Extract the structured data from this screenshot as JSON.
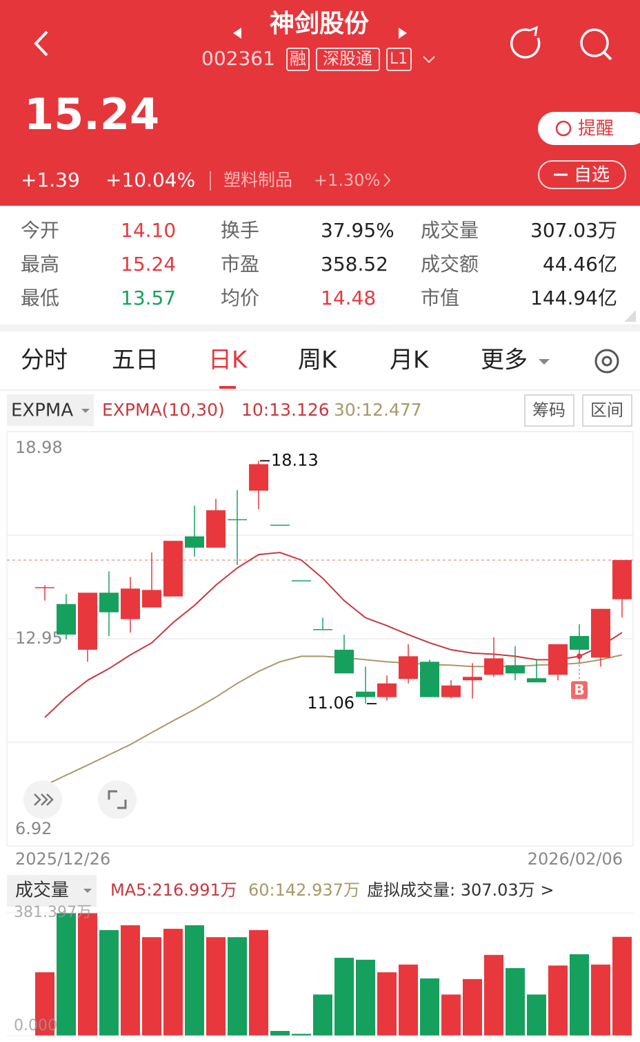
{
  "header": {
    "title": "神剑股份",
    "code": "002361",
    "tags": [
      "融",
      "深股通",
      "L1"
    ],
    "price": "15.24",
    "change": "+1.39",
    "change_pct": "+10.04%",
    "sector": "塑料制品",
    "sector_change": "+1.30%",
    "alert_button": "提醒",
    "watch_button": "自选"
  },
  "stats": [
    [
      [
        "今开",
        "14.10"
      ],
      [
        "换手",
        "37.95%"
      ],
      [
        "成交量",
        "307.03万"
      ]
    ],
    [
      [
        "最高",
        "15.24"
      ],
      [
        "市盈",
        "358.52"
      ],
      [
        "成交额",
        "44.46亿"
      ]
    ],
    [
      [
        "最低",
        "13.57"
      ],
      [
        "均价",
        "14.48"
      ],
      [
        "市值",
        "144.94亿"
      ]
    ]
  ],
  "tabs": [
    "分时",
    "五日",
    "日K",
    "周K",
    "月K",
    "更多"
  ],
  "indicator": {
    "selector": "EXPMA",
    "name": "EXPMA(10,30)",
    "ma10": "10:13.126",
    "ma30": "30:12.477",
    "buttons": [
      "筹码",
      "区间"
    ]
  },
  "chart_data": {
    "type": "candlestick",
    "ylim": [
      6.92,
      18.98
    ],
    "yticks": [
      18.98,
      12.95,
      6.92
    ],
    "open": [
      14.45,
      13.96,
      12.63,
      14.29,
      13.52,
      13.86,
      14.18,
      15.93,
      15.6,
      16.43,
      17.26,
      16.27,
      14.65,
      13.23,
      12.63,
      11.41,
      11.25,
      11.78,
      12.28,
      11.25,
      11.74,
      11.9,
      12.18,
      11.8,
      11.9,
      13.03,
      12.4,
      14.1
    ],
    "close": [
      14.45,
      13.07,
      14.29,
      13.72,
      14.41,
      14.37,
      15.8,
      15.6,
      16.69,
      16.43,
      18.03,
      16.27,
      14.65,
      13.23,
      11.94,
      11.25,
      11.65,
      12.44,
      11.25,
      11.59,
      11.84,
      12.38,
      11.94,
      11.68,
      12.79,
      12.63,
      13.82,
      15.24
    ],
    "high": [
      14.51,
      14.25,
      14.29,
      14.91,
      14.75,
      15.46,
      15.8,
      16.82,
      17.02,
      17.28,
      18.13,
      16.27,
      14.65,
      13.56,
      13.07,
      12.14,
      11.88,
      12.79,
      12.34,
      11.74,
      12.24,
      12.99,
      12.73,
      12.34,
      12.79,
      13.37,
      13.82,
      15.24
    ],
    "low": [
      14.06,
      12.93,
      12.28,
      13.03,
      13.13,
      13.86,
      14.18,
      15.34,
      15.6,
      15.1,
      16.72,
      16.27,
      14.65,
      13.23,
      11.94,
      11.06,
      11.15,
      11.65,
      11.25,
      11.21,
      11.21,
      11.84,
      11.74,
      11.68,
      11.74,
      12.24,
      12.14,
      13.57
    ],
    "series": [
      {
        "name": "EXPMA10",
        "color": "#c8383d",
        "values": [
          10.66,
          11.25,
          11.74,
          12.08,
          12.48,
          12.83,
          13.42,
          13.92,
          14.51,
          15.01,
          15.4,
          15.46,
          15.24,
          14.71,
          14.06,
          13.56,
          13.33,
          13.07,
          12.83,
          12.63,
          12.53,
          12.5,
          12.44,
          12.34,
          12.34,
          12.44,
          12.73,
          13.13
        ]
      },
      {
        "name": "EXPMA30",
        "color": "#a89868",
        "values": [
          8.68,
          8.98,
          9.27,
          9.57,
          9.87,
          10.22,
          10.56,
          10.89,
          11.25,
          11.65,
          12.0,
          12.28,
          12.44,
          12.44,
          12.4,
          12.34,
          12.28,
          12.24,
          12.2,
          12.18,
          12.14,
          12.14,
          12.14,
          12.18,
          12.2,
          12.24,
          12.34,
          12.48
        ]
      }
    ],
    "buy_marker": "B",
    "buy_index": 25,
    "start_date": "2025/12/26",
    "end_date": "2026/02/06"
  },
  "volume_chart": {
    "type": "bar",
    "title": "成交量",
    "ma5": "MA5:216.991万",
    "ma60": "60:142.937万",
    "virtual": "虚拟成交量: 307.03万 >",
    "ylim": [
      0,
      381.397
    ],
    "yticks": [
      {
        "value": 381.397,
        "label": "381.397万"
      },
      {
        "value": 0,
        "label": "0.000"
      }
    ],
    "values": [
      197,
      381,
      381,
      328,
      343,
      306,
      332,
      343,
      306,
      306,
      328,
      15,
      6,
      128,
      242,
      236,
      197,
      221,
      178,
      128,
      176,
      251,
      210,
      128,
      218,
      253,
      221,
      307.03
    ]
  }
}
